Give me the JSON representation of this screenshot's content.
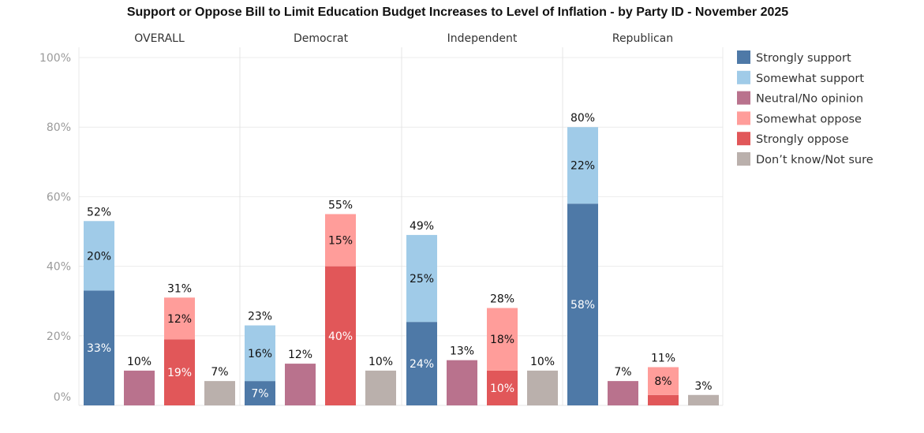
{
  "chart_data": {
    "type": "bar",
    "title": "Support or Oppose Bill to Limit Education Budget Increases to Level of Inflation - by Party ID - November 2025",
    "xlabel": "",
    "ylabel": "",
    "ylim": [
      0,
      100
    ],
    "y_ticks": [
      "0%",
      "20%",
      "40%",
      "60%",
      "80%",
      "100%"
    ],
    "grid": true,
    "stacked": true,
    "legend_position": "right",
    "panels": [
      "OVERALL",
      "Democrat",
      "Independent",
      "Republican"
    ],
    "bar_groups": [
      "Support",
      "Neutral/No opinion",
      "Oppose",
      "Don't know/Not sure"
    ],
    "legend": [
      {
        "name": "Strongly support",
        "color": "#4e79a7"
      },
      {
        "name": "Somewhat support",
        "color": "#a0cbe8"
      },
      {
        "name": "Neutral/No opinion",
        "color": "#b9728d"
      },
      {
        "name": "Somewhat oppose",
        "color": "#ff9d9a"
      },
      {
        "name": "Strongly oppose",
        "color": "#e15759"
      },
      {
        "name": "Don’t know/Not sure",
        "color": "#bab0ac"
      }
    ],
    "bars": [
      {
        "panel": "OVERALL",
        "group": "Support",
        "total": 52,
        "total_label": "52%",
        "segments": [
          {
            "series": "Strongly support",
            "value": 33,
            "label": "33%"
          },
          {
            "series": "Somewhat support",
            "value": 20,
            "label": "20%"
          }
        ]
      },
      {
        "panel": "OVERALL",
        "group": "Neutral/No opinion",
        "total": 10,
        "total_label": "10%",
        "segments": [
          {
            "series": "Neutral/No opinion",
            "value": 10,
            "label": ""
          }
        ]
      },
      {
        "panel": "OVERALL",
        "group": "Oppose",
        "total": 31,
        "total_label": "31%",
        "segments": [
          {
            "series": "Strongly oppose",
            "value": 19,
            "label": "19%"
          },
          {
            "series": "Somewhat oppose",
            "value": 12,
            "label": "12%"
          }
        ]
      },
      {
        "panel": "OVERALL",
        "group": "Don't know/Not sure",
        "total": 7,
        "total_label": "7%",
        "segments": [
          {
            "series": "Don’t know/Not sure",
            "value": 7,
            "label": ""
          }
        ]
      },
      {
        "panel": "Democrat",
        "group": "Support",
        "total": 23,
        "total_label": "23%",
        "segments": [
          {
            "series": "Strongly support",
            "value": 7,
            "label": "7%"
          },
          {
            "series": "Somewhat support",
            "value": 16,
            "label": "16%"
          }
        ]
      },
      {
        "panel": "Democrat",
        "group": "Neutral/No opinion",
        "total": 12,
        "total_label": "12%",
        "segments": [
          {
            "series": "Neutral/No opinion",
            "value": 12,
            "label": ""
          }
        ]
      },
      {
        "panel": "Democrat",
        "group": "Oppose",
        "total": 55,
        "total_label": "55%",
        "segments": [
          {
            "series": "Strongly oppose",
            "value": 40,
            "label": "40%"
          },
          {
            "series": "Somewhat oppose",
            "value": 15,
            "label": "15%"
          }
        ]
      },
      {
        "panel": "Democrat",
        "group": "Don't know/Not sure",
        "total": 10,
        "total_label": "10%",
        "segments": [
          {
            "series": "Don’t know/Not sure",
            "value": 10,
            "label": ""
          }
        ]
      },
      {
        "panel": "Independent",
        "group": "Support",
        "total": 49,
        "total_label": "49%",
        "segments": [
          {
            "series": "Strongly support",
            "value": 24,
            "label": "24%"
          },
          {
            "series": "Somewhat support",
            "value": 25,
            "label": "25%"
          }
        ]
      },
      {
        "panel": "Independent",
        "group": "Neutral/No opinion",
        "total": 13,
        "total_label": "13%",
        "segments": [
          {
            "series": "Neutral/No opinion",
            "value": 13,
            "label": ""
          }
        ]
      },
      {
        "panel": "Independent",
        "group": "Oppose",
        "total": 28,
        "total_label": "28%",
        "segments": [
          {
            "series": "Strongly oppose",
            "value": 10,
            "label": "10%"
          },
          {
            "series": "Somewhat oppose",
            "value": 18,
            "label": "18%"
          }
        ]
      },
      {
        "panel": "Independent",
        "group": "Don't know/Not sure",
        "total": 10,
        "total_label": "10%",
        "segments": [
          {
            "series": "Don’t know/Not sure",
            "value": 10,
            "label": ""
          }
        ]
      },
      {
        "panel": "Republican",
        "group": "Support",
        "total": 80,
        "total_label": "80%",
        "segments": [
          {
            "series": "Strongly support",
            "value": 58,
            "label": "58%"
          },
          {
            "series": "Somewhat support",
            "value": 22,
            "label": "22%"
          }
        ]
      },
      {
        "panel": "Republican",
        "group": "Neutral/No opinion",
        "total": 7,
        "total_label": "7%",
        "segments": [
          {
            "series": "Neutral/No opinion",
            "value": 7,
            "label": ""
          }
        ]
      },
      {
        "panel": "Republican",
        "group": "Oppose",
        "total": 11,
        "total_label": "11%",
        "segments": [
          {
            "series": "Strongly oppose",
            "value": 3,
            "label": ""
          },
          {
            "series": "Somewhat oppose",
            "value": 8,
            "label": "8%"
          }
        ]
      },
      {
        "panel": "Republican",
        "group": "Don't know/Not sure",
        "total": 3,
        "total_label": "3%",
        "segments": [
          {
            "series": "Don’t know/Not sure",
            "value": 3,
            "label": ""
          }
        ]
      }
    ]
  }
}
